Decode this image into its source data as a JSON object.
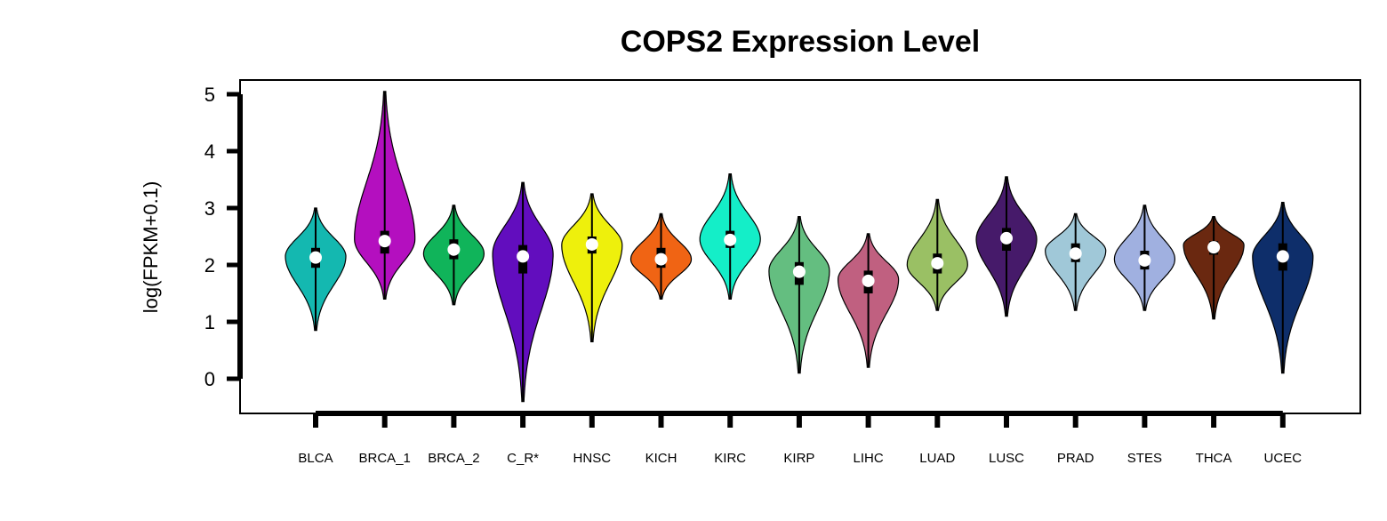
{
  "chart_data": {
    "type": "violin",
    "title": "COPS2 Expression Level",
    "xlabel": "",
    "ylabel": "log(FPKM+0.1)",
    "ylim": [
      -0.6,
      5.25
    ],
    "yticks": [
      0,
      1,
      2,
      3,
      4,
      5
    ],
    "grid": false,
    "legend": "none",
    "categories": [
      "BLCA",
      "BRCA_1",
      "BRCA_2",
      "C_R*",
      "HNSC",
      "KICH",
      "KIRC",
      "KIRP",
      "LIHC",
      "LUAD",
      "LUSC",
      "PRAD",
      "STES",
      "THCA",
      "UCEC"
    ],
    "colors": [
      "#14B8B0",
      "#B40FBF",
      "#10B45A",
      "#620DBE",
      "#EEF00C",
      "#F06414",
      "#14EEC8",
      "#64BE80",
      "#C06080",
      "#9AC064",
      "#461A6A",
      "#A0C8D8",
      "#A0B0E0",
      "#6A2810",
      "#0E2E6A"
    ],
    "series": [
      {
        "category": "BLCA",
        "min": 0.85,
        "max": 3.0,
        "q1": 1.95,
        "median": 2.13,
        "q3": 2.3,
        "peak": 2.15,
        "width": 0.8
      },
      {
        "category": "BRCA_1",
        "min": 1.4,
        "max": 5.05,
        "q1": 2.2,
        "median": 2.42,
        "q3": 2.6,
        "peak": 2.45,
        "width": 0.8
      },
      {
        "category": "BRCA_2",
        "min": 1.3,
        "max": 3.05,
        "q1": 2.1,
        "median": 2.27,
        "q3": 2.45,
        "peak": 2.2,
        "width": 0.8
      },
      {
        "category": "C_R*",
        "min": -0.4,
        "max": 3.45,
        "q1": 1.85,
        "median": 2.15,
        "q3": 2.35,
        "peak": 2.2,
        "width": 0.8
      },
      {
        "category": "HNSC",
        "min": 0.65,
        "max": 3.25,
        "q1": 2.2,
        "median": 2.36,
        "q3": 2.5,
        "peak": 2.35,
        "width": 0.8
      },
      {
        "category": "KICH",
        "min": 1.4,
        "max": 2.9,
        "q1": 1.95,
        "median": 2.1,
        "q3": 2.3,
        "peak": 2.1,
        "width": 0.8
      },
      {
        "category": "KIRC",
        "min": 1.4,
        "max": 3.6,
        "q1": 2.3,
        "median": 2.44,
        "q3": 2.6,
        "peak": 2.45,
        "width": 0.8
      },
      {
        "category": "KIRP",
        "min": 0.1,
        "max": 2.85,
        "q1": 1.65,
        "median": 1.88,
        "q3": 2.05,
        "peak": 1.9,
        "width": 0.8
      },
      {
        "category": "LIHC",
        "min": 0.2,
        "max": 2.55,
        "q1": 1.5,
        "median": 1.72,
        "q3": 1.9,
        "peak": 1.75,
        "width": 0.8
      },
      {
        "category": "LUAD",
        "min": 1.2,
        "max": 3.15,
        "q1": 1.85,
        "median": 2.03,
        "q3": 2.2,
        "peak": 2.0,
        "width": 0.8
      },
      {
        "category": "LUSC",
        "min": 1.1,
        "max": 3.55,
        "q1": 2.25,
        "median": 2.47,
        "q3": 2.65,
        "peak": 2.45,
        "width": 0.8
      },
      {
        "category": "PRAD",
        "min": 1.2,
        "max": 2.9,
        "q1": 2.05,
        "median": 2.2,
        "q3": 2.38,
        "peak": 2.25,
        "width": 0.8
      },
      {
        "category": "STES",
        "min": 1.2,
        "max": 3.05,
        "q1": 1.92,
        "median": 2.08,
        "q3": 2.25,
        "peak": 2.1,
        "width": 0.8
      },
      {
        "category": "THCA",
        "min": 1.05,
        "max": 2.85,
        "q1": 2.18,
        "median": 2.31,
        "q3": 2.42,
        "peak": 2.35,
        "width": 0.8
      },
      {
        "category": "UCEC",
        "min": 0.1,
        "max": 3.1,
        "q1": 1.9,
        "median": 2.15,
        "q3": 2.38,
        "peak": 2.15,
        "width": 0.8
      }
    ]
  }
}
